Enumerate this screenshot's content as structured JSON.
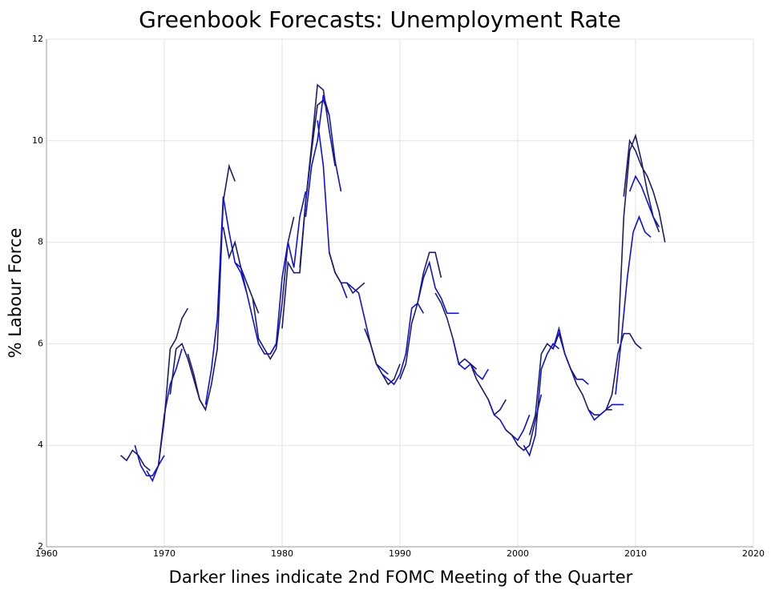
{
  "chart_data": {
    "type": "line",
    "title": "Greenbook Forecasts: Unemployment Rate",
    "x_label": "Darker lines indicate 2nd FOMC Meeting of the Quarter",
    "y_label": "% Labour Force",
    "xlim": [
      1960,
      2020
    ],
    "xticks": [
      1960,
      1970,
      1980,
      1990,
      2000,
      2010,
      2020
    ],
    "ylim": [
      2,
      12
    ],
    "yticks": [
      2,
      4,
      6,
      8,
      10,
      12
    ],
    "grid": true,
    "series": [
      {
        "color": "#1c1c6b",
        "x": [
          1966.3,
          1966.8,
          1967.3,
          1967.8,
          1968.3,
          1968.8
        ],
        "values": [
          3.8,
          3.7,
          3.9,
          3.8,
          3.6,
          3.5
        ]
      },
      {
        "color": "#1010d8",
        "x": [
          1967.5,
          1968,
          1968.5,
          1969,
          1969.5,
          1970
        ],
        "values": [
          4.0,
          3.6,
          3.4,
          3.4,
          3.6,
          3.8
        ]
      },
      {
        "color": "#1010d8",
        "x": [
          1968.5,
          1969,
          1969.5,
          1970,
          1970.5,
          1971,
          1971.5
        ],
        "values": [
          3.5,
          3.3,
          3.6,
          4.6,
          5.2,
          5.5,
          5.9
        ]
      },
      {
        "color": "#1c1c6b",
        "x": [
          1969.5,
          1970,
          1970.5,
          1971,
          1971.5,
          1972
        ],
        "values": [
          3.6,
          4.5,
          5.9,
          6.1,
          6.5,
          6.7
        ]
      },
      {
        "color": "#1c1c6b",
        "x": [
          1970.5,
          1971,
          1971.5,
          1972,
          1972.5,
          1973,
          1973.5
        ],
        "values": [
          5.0,
          5.9,
          6.0,
          5.7,
          5.3,
          4.9,
          4.7
        ]
      },
      {
        "color": "#1c1c6b",
        "x": [
          1972,
          1972.5,
          1973,
          1973.5,
          1974,
          1974.5,
          1975,
          1975.5,
          1976
        ],
        "values": [
          5.8,
          5.4,
          4.9,
          4.7,
          5.2,
          5.9,
          8.8,
          9.5,
          9.2
        ]
      },
      {
        "color": "#1010d8",
        "x": [
          1973.5,
          1974,
          1974.5,
          1975,
          1975.5,
          1976,
          1976.5,
          1977
        ],
        "values": [
          4.8,
          5.5,
          6.5,
          8.9,
          8.2,
          7.6,
          7.4,
          7.0
        ]
      },
      {
        "color": "#1c1c6b",
        "x": [
          1975,
          1975.5,
          1976,
          1976.5,
          1977,
          1977.5,
          1978
        ],
        "values": [
          8.3,
          7.7,
          8.0,
          7.5,
          7.2,
          6.9,
          6.6
        ]
      },
      {
        "color": "#1010d8",
        "x": [
          1976,
          1976.5,
          1977,
          1977.5,
          1978,
          1978.5,
          1979,
          1979.5
        ],
        "values": [
          7.6,
          7.5,
          7.0,
          6.5,
          6.0,
          5.8,
          5.8,
          6.0
        ]
      },
      {
        "color": "#1c1c6b",
        "x": [
          1977.5,
          1978,
          1978.5,
          1979,
          1979.5,
          1980,
          1980.5,
          1981
        ],
        "values": [
          6.9,
          6.1,
          5.9,
          5.7,
          5.9,
          6.8,
          8.0,
          8.5
        ]
      },
      {
        "color": "#1010d8",
        "x": [
          1979,
          1979.5,
          1980,
          1980.5,
          1981,
          1981.5,
          1982
        ],
        "values": [
          5.8,
          6.0,
          7.3,
          8.0,
          7.5,
          8.5,
          9.0
        ]
      },
      {
        "color": "#1c1c6b",
        "x": [
          1980,
          1980.5,
          1981,
          1981.5,
          1982,
          1982.5,
          1983,
          1983.5,
          1984
        ],
        "values": [
          6.3,
          7.6,
          7.4,
          7.4,
          8.8,
          9.8,
          10.7,
          10.8,
          10.5
        ]
      },
      {
        "color": "#1c1c6b",
        "x": [
          1981.5,
          1982,
          1982.5,
          1983,
          1983.5,
          1984,
          1984.5
        ],
        "values": [
          7.5,
          8.8,
          9.9,
          11.1,
          11.0,
          10.2,
          9.5
        ]
      },
      {
        "color": "#1010d8",
        "x": [
          1982,
          1982.5,
          1983,
          1983.5,
          1984,
          1984.5,
          1985
        ],
        "values": [
          8.5,
          9.5,
          10.0,
          10.9,
          10.5,
          9.6,
          9.0
        ]
      },
      {
        "color": "#1010d8",
        "x": [
          1983,
          1983.5,
          1984,
          1984.5,
          1985,
          1985.5
        ],
        "values": [
          10.4,
          9.5,
          7.8,
          7.4,
          7.2,
          6.9
        ]
      },
      {
        "color": "#1c1c6b",
        "x": [
          1984,
          1984.5,
          1985,
          1985.5,
          1986,
          1986.5,
          1987
        ],
        "values": [
          7.8,
          7.4,
          7.2,
          7.2,
          7.0,
          7.1,
          7.2
        ]
      },
      {
        "color": "#1010d8",
        "x": [
          1985.5,
          1986,
          1986.5,
          1987,
          1987.5,
          1988,
          1988.5,
          1989
        ],
        "values": [
          7.2,
          7.1,
          7.0,
          6.5,
          6.0,
          5.6,
          5.5,
          5.4
        ]
      },
      {
        "color": "#1c1c6b",
        "x": [
          1987,
          1987.5,
          1988,
          1988.5,
          1989,
          1989.5,
          1990
        ],
        "values": [
          6.3,
          6.0,
          5.6,
          5.4,
          5.2,
          5.3,
          5.6
        ]
      },
      {
        "color": "#1010d8",
        "x": [
          1988.5,
          1989,
          1989.5,
          1990,
          1990.5,
          1991,
          1991.5,
          1992
        ],
        "values": [
          5.4,
          5.3,
          5.2,
          5.4,
          5.8,
          6.7,
          6.8,
          6.6
        ]
      },
      {
        "color": "#1c1c6b",
        "x": [
          1990,
          1990.5,
          1991,
          1991.5,
          1992,
          1992.5,
          1993,
          1993.5
        ],
        "values": [
          5.3,
          5.6,
          6.4,
          6.8,
          7.4,
          7.8,
          7.8,
          7.3
        ]
      },
      {
        "color": "#1010d8",
        "x": [
          1991.5,
          1992,
          1992.5,
          1993,
          1993.5,
          1994,
          1994.5,
          1995
        ],
        "values": [
          6.8,
          7.3,
          7.6,
          7.1,
          6.9,
          6.6,
          6.6,
          6.6
        ]
      },
      {
        "color": "#1c1c6b",
        "x": [
          1993,
          1993.5,
          1994,
          1994.5,
          1995,
          1995.5,
          1996,
          1996.5
        ],
        "values": [
          7.0,
          6.8,
          6.5,
          6.1,
          5.6,
          5.7,
          5.6,
          5.5
        ]
      },
      {
        "color": "#1010d8",
        "x": [
          1994.5,
          1995,
          1995.5,
          1996,
          1996.5,
          1997,
          1997.5
        ],
        "values": [
          6.1,
          5.6,
          5.5,
          5.6,
          5.4,
          5.3,
          5.5
        ]
      },
      {
        "color": "#1c1c6b",
        "x": [
          1996,
          1996.5,
          1997,
          1997.5,
          1998,
          1998.5,
          1999
        ],
        "values": [
          5.6,
          5.3,
          5.1,
          4.9,
          4.6,
          4.7,
          4.9
        ]
      },
      {
        "color": "#1010d8",
        "x": [
          1997.5,
          1998,
          1998.5,
          1999,
          1999.5,
          2000,
          2000.5,
          2001
        ],
        "values": [
          4.9,
          4.6,
          4.5,
          4.3,
          4.2,
          4.1,
          4.3,
          4.6
        ]
      },
      {
        "color": "#1c1c6b",
        "x": [
          1999,
          1999.5,
          2000,
          2000.5,
          2001,
          2001.5,
          2002
        ],
        "values": [
          4.3,
          4.2,
          4.0,
          3.9,
          4.0,
          4.5,
          5.0
        ]
      },
      {
        "color": "#1010d8",
        "x": [
          2000.5,
          2001,
          2001.5,
          2002,
          2002.5,
          2003,
          2003.5
        ],
        "values": [
          4.0,
          3.8,
          4.2,
          5.5,
          5.8,
          6.0,
          5.9
        ]
      },
      {
        "color": "#1c1c6b",
        "x": [
          2001,
          2001.5,
          2002,
          2002.5,
          2003,
          2003.5,
          2004,
          2004.5,
          2005
        ],
        "values": [
          4.2,
          4.6,
          5.8,
          6.0,
          5.9,
          6.2,
          5.8,
          5.5,
          5.3
        ]
      },
      {
        "color": "#1010d8",
        "x": [
          2003,
          2003.5,
          2004,
          2004.5,
          2005,
          2005.5,
          2006
        ],
        "values": [
          5.9,
          6.3,
          5.8,
          5.5,
          5.3,
          5.3,
          5.2
        ]
      },
      {
        "color": "#1c1c6b",
        "x": [
          2004.5,
          2005,
          2005.5,
          2006,
          2006.5,
          2007,
          2007.5,
          2008
        ],
        "values": [
          5.5,
          5.2,
          5.0,
          4.7,
          4.6,
          4.6,
          4.7,
          4.7
        ]
      },
      {
        "color": "#1010d8",
        "x": [
          2006,
          2006.5,
          2007,
          2007.5,
          2008,
          2008.5,
          2009
        ],
        "values": [
          4.7,
          4.5,
          4.6,
          4.7,
          4.8,
          4.8,
          4.8
        ]
      },
      {
        "color": "#1c1c6b",
        "x": [
          2007.5,
          2008,
          2008.5,
          2009,
          2009.5,
          2010,
          2010.5
        ],
        "values": [
          4.7,
          5.0,
          5.8,
          6.2,
          6.2,
          6.0,
          5.9
        ]
      },
      {
        "color": "#1010d8",
        "x": [
          2008.3,
          2008.8,
          2009.3,
          2009.8,
          2010.3,
          2010.8,
          2011.3
        ],
        "values": [
          5.0,
          6.1,
          7.3,
          8.2,
          8.5,
          8.2,
          8.1
        ]
      },
      {
        "color": "#1c1c6b",
        "x": [
          2008.5,
          2009,
          2009.5,
          2010,
          2010.5,
          2011,
          2011.5,
          2012
        ],
        "values": [
          6.0,
          8.5,
          9.8,
          10.1,
          9.6,
          9.0,
          8.5,
          8.2
        ]
      },
      {
        "color": "#1c1c6b",
        "x": [
          2009,
          2009.5,
          2010,
          2010.5,
          2011,
          2011.5,
          2012,
          2012.5
        ],
        "values": [
          8.9,
          10.0,
          9.8,
          9.5,
          9.3,
          9.0,
          8.6,
          8.0
        ]
      },
      {
        "color": "#1010d8",
        "x": [
          2009.5,
          2010,
          2010.5,
          2011,
          2011.5,
          2012
        ],
        "values": [
          9.0,
          9.3,
          9.1,
          8.8,
          8.5,
          8.3
        ]
      }
    ]
  }
}
